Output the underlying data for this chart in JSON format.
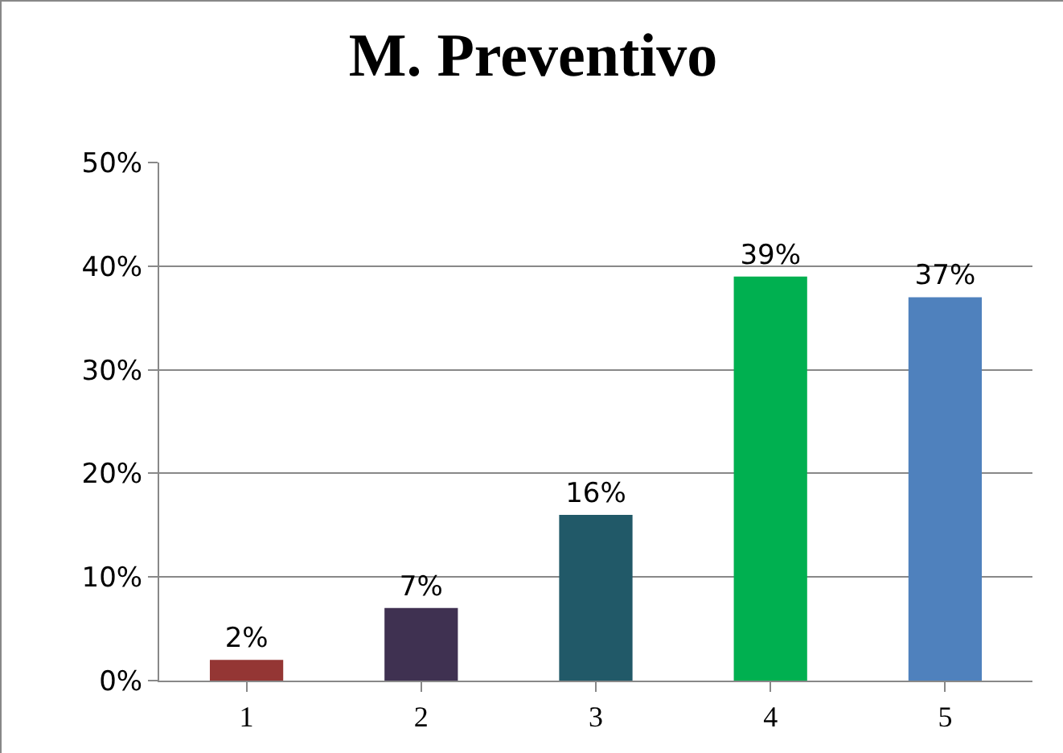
{
  "chart_data": {
    "type": "bar",
    "title": "M. Preventivo",
    "categories": [
      "1",
      "2",
      "3",
      "4",
      "5"
    ],
    "values": [
      2,
      7,
      16,
      39,
      37
    ],
    "colors": [
      "#943634",
      "#3f3151",
      "#215968",
      "#00b050",
      "#4f81bd"
    ],
    "value_labels": [
      "2%",
      "7%",
      "16%",
      "39%",
      "37%"
    ],
    "ylim": [
      0,
      50
    ],
    "yticks": [
      {
        "value": 0,
        "label": "0%"
      },
      {
        "value": 10,
        "label": "10%"
      },
      {
        "value": 20,
        "label": "20%"
      },
      {
        "value": 30,
        "label": "30%"
      },
      {
        "value": 40,
        "label": "40%"
      },
      {
        "value": 50,
        "label": "50%"
      }
    ],
    "grid": "y"
  }
}
